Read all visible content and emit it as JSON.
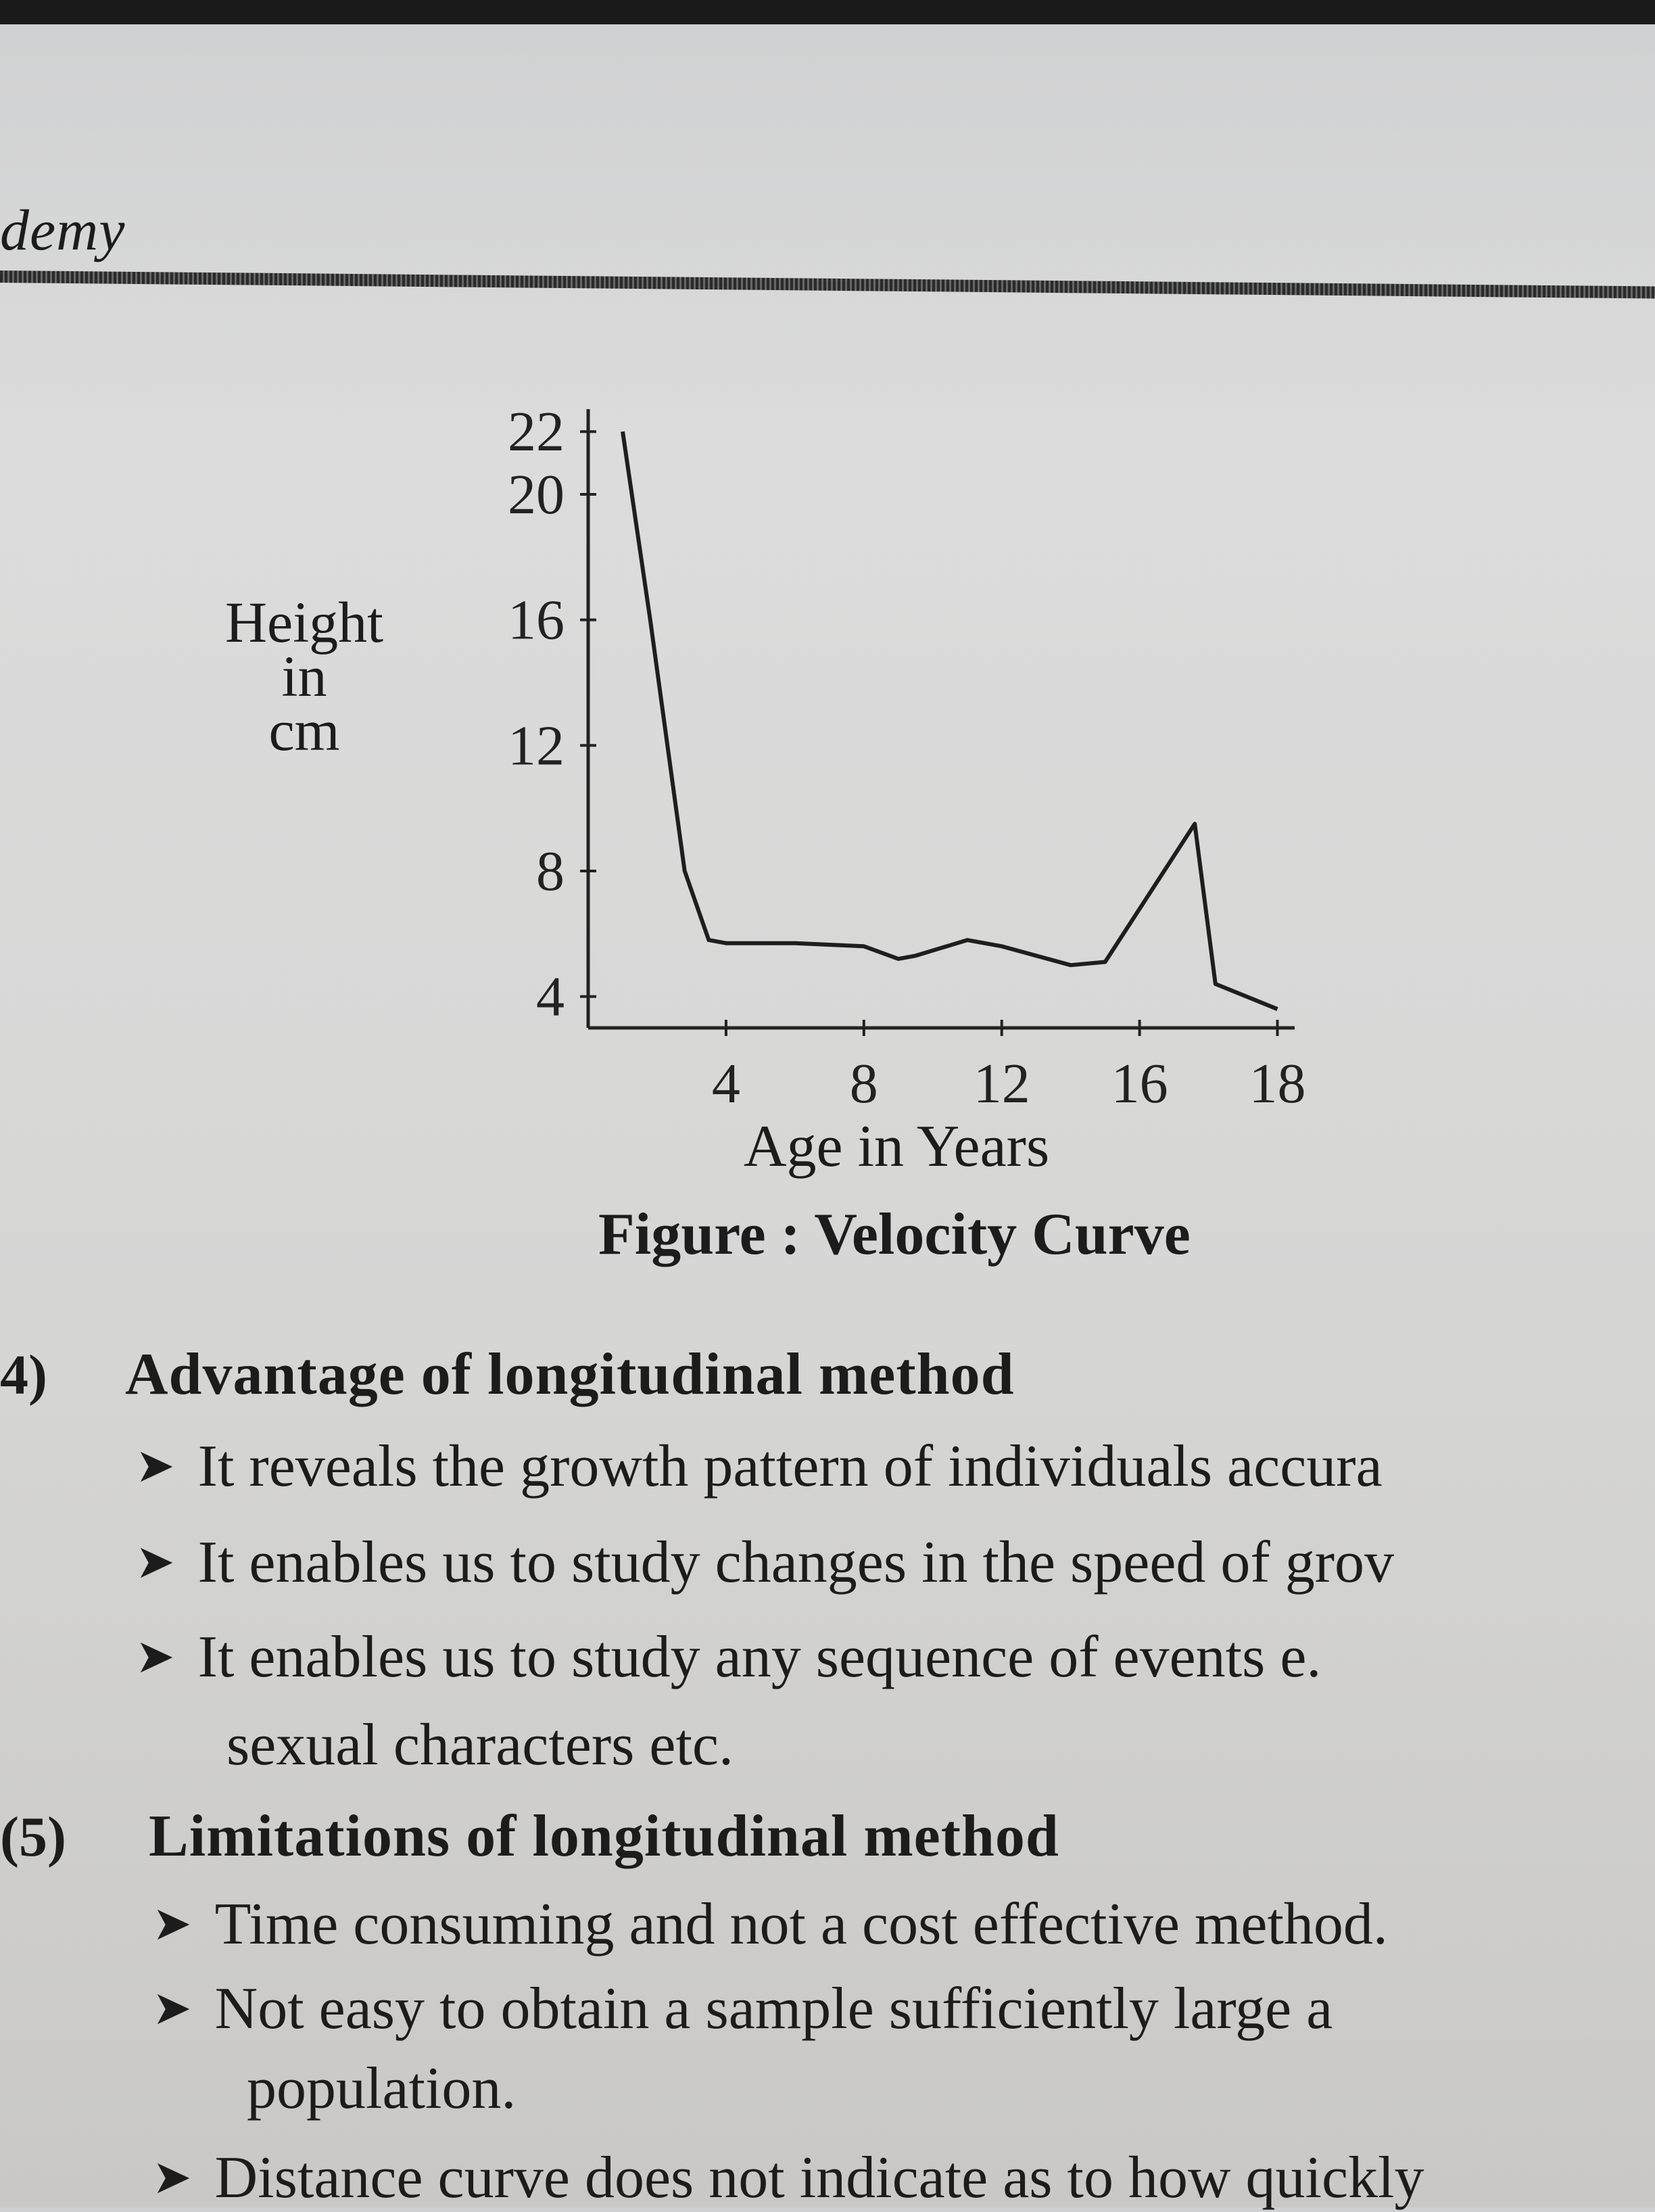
{
  "header": {
    "word": "demy"
  },
  "figure": {
    "caption": "Figure : Velocity Curve",
    "ylabel": [
      "Height",
      "in",
      "cm"
    ],
    "xlabel": "Age in Years"
  },
  "chart_data": {
    "type": "line",
    "yticks": [
      "22",
      "20",
      "16",
      "12",
      "8",
      "4"
    ],
    "xticks": [
      "4",
      "8",
      "12",
      "16",
      "18"
    ],
    "x": [
      1,
      1.8,
      2.8,
      3.5,
      4,
      6,
      8,
      9,
      9.5,
      11,
      12,
      14,
      15,
      17.6,
      18.2,
      20
    ],
    "y": [
      22,
      16,
      8,
      5.8,
      5.7,
      5.7,
      5.6,
      5.2,
      5.3,
      5.8,
      5.6,
      5,
      5.1,
      9.5,
      4.4,
      3.6
    ],
    "ylim": [
      3,
      22.5
    ],
    "xlim": [
      0,
      20.5
    ],
    "grid": false
  },
  "section4": {
    "number": "4)",
    "title": "Advantage of longitudinal method",
    "bullets": [
      "It reveals the growth pattern of individuals accura",
      "It enables us to study changes in the speed of grov",
      "It enables us to study any sequence of events e."
    ],
    "continuation": "sexual characters etc."
  },
  "section5": {
    "number": "(5)",
    "title": "Limitations of longitudinal method",
    "bullets": [
      "Time consuming and not a cost effective method.",
      "Not easy to obtain a sample sufficiently large a",
      "Distance curve does not indicate as to how quickly"
    ],
    "continuation": "population."
  },
  "bullet_symbol": "➤"
}
